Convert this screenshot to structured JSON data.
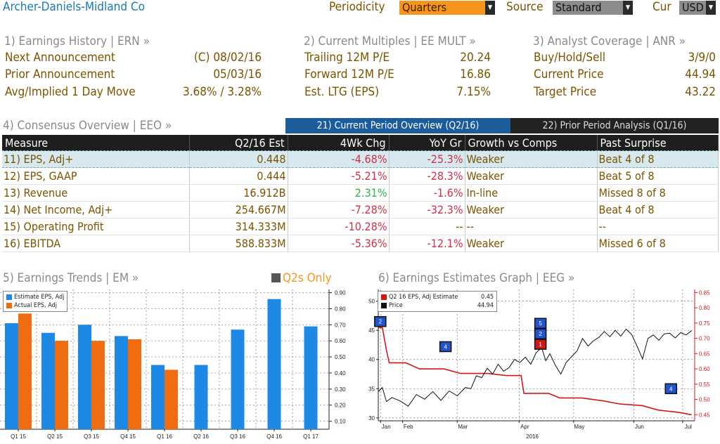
{
  "header": {
    "company": "Archer-Daniels-Midland Co",
    "periodicity_label": "Periodicity",
    "periodicity_value": "Quarters",
    "source_label": "Source",
    "source_value": "Standard",
    "currency_label": "Cur",
    "currency_value": "USD"
  },
  "earnings_history": {
    "title": "1) Earnings History | ERN »",
    "rows": [
      {
        "label": "Next Announcement",
        "value": "(C)  08/02/16"
      },
      {
        "label": "Prior Announcement",
        "value": "05/03/16"
      },
      {
        "label": "Avg/Implied 1 Day Move",
        "value": "3.68% / 3.28%"
      }
    ]
  },
  "current_multiples": {
    "title": "2) Current Multiples | EE MULT »",
    "rows": [
      {
        "label": "Trailing 12M P/E",
        "value": "20.24"
      },
      {
        "label": "Forward 12M P/E",
        "value": "16.86"
      },
      {
        "label": "Est. LTG (EPS)",
        "value": "7.15%"
      }
    ]
  },
  "analyst_coverage": {
    "title": "3) Analyst Coverage | ANR »",
    "rows": [
      {
        "label": "Buy/Hold/Sell",
        "value": "3/9/0"
      },
      {
        "label": "Current Price",
        "value": "44.94"
      },
      {
        "label": "Target Price",
        "value": "43.22"
      }
    ]
  },
  "consensus": {
    "title": "4) Consensus Overview | EEO »",
    "tab_current": "21) Current Period Overview (Q2/16)",
    "tab_prior": "22) Prior Period Analysis (Q1/16)",
    "columns": [
      "Measure",
      "Q2/16 Est",
      "4Wk Chg",
      "YoY Gr",
      "Growth vs Comps",
      "Past Surprise"
    ],
    "rows": [
      {
        "measure": "11) EPS, Adj+",
        "est": "0.448",
        "chg": "-4.68%",
        "yoy": "-25.3%",
        "comps": "Weaker",
        "surprise": "Beat 4 of 8"
      },
      {
        "measure": "12) EPS, GAAP",
        "est": "0.444",
        "chg": "-5.21%",
        "yoy": "-28.3%",
        "comps": "Weaker",
        "surprise": "Beat 5 of 8"
      },
      {
        "measure": "13) Revenue",
        "est": "16.912B",
        "chg": "2.31%",
        "yoy": "-1.6%",
        "comps": "In-line",
        "surprise": "Missed 8 of 8"
      },
      {
        "measure": "14) Net Income, Adj+",
        "est": "254.667M",
        "chg": "-7.28%",
        "yoy": "-32.3%",
        "comps": "Weaker",
        "surprise": "Beat 4 of 8"
      },
      {
        "measure": "15) Operating Profit",
        "est": "314.333M",
        "chg": "-10.28%",
        "yoy": "--",
        "comps": "--",
        "surprise": "--"
      },
      {
        "measure": "16) EBITDA",
        "est": "588.833M",
        "chg": "-5.36%",
        "yoy": "-12.1%",
        "comps": "Weaker",
        "surprise": "Missed 6 of 8"
      }
    ]
  },
  "trends": {
    "title": "5) Earnings Trends | EM »",
    "toggle_label": "Q2s Only"
  },
  "graph": {
    "title": "6) Earnings Estimates Graph | EEG »",
    "legend_estimate": "Q2 16 EPS, Adj Estimate",
    "legend_estimate_value": "0.45",
    "legend_price": "Price",
    "legend_price_value": "44.94",
    "year_label": "2016"
  },
  "colors": {
    "blue": "#1e88e5",
    "orange": "#ef6c10",
    "red": "#d01818",
    "price": "#111111"
  },
  "chart_data": [
    {
      "type": "bar",
      "categories": [
        "Q1 15",
        "Q2 15",
        "Q3 15",
        "Q4 15",
        "Q1 16",
        "Q2 16",
        "Q3 16",
        "Q4 16",
        "Q1 17"
      ],
      "series": [
        {
          "name": "Estimate EPS, Adj",
          "values": [
            0.71,
            0.65,
            0.7,
            0.63,
            0.45,
            0.45,
            0.67,
            0.86,
            0.69
          ]
        },
        {
          "name": "Actual EPS, Adj",
          "values": [
            0.77,
            0.6,
            0.6,
            0.61,
            0.42,
            null,
            null,
            null,
            null
          ]
        }
      ],
      "ylim": [
        0.05,
        0.92
      ],
      "yticks": [
        "0.10",
        "0.20",
        "0.30",
        "0.40",
        "0.50",
        "0.60",
        "0.70",
        "0.80",
        "0.90"
      ],
      "legend": "top-left",
      "grid": true
    },
    {
      "type": "line",
      "x_ticks": [
        "Jan",
        "Feb",
        "Mar",
        "Apr",
        "May",
        "Jun",
        "Jul"
      ],
      "x_year": "2016",
      "left_axis": {
        "ticks": [
          30,
          35,
          40,
          45,
          50
        ],
        "ylim": [
          29.5,
          52
        ]
      },
      "right_axis": {
        "ticks": [
          "0.45",
          "0.50",
          "0.55",
          "0.60",
          "0.65",
          "0.70",
          "0.75",
          "0.80",
          "0.85"
        ],
        "ylim": [
          0.43,
          0.86
        ]
      },
      "series": [
        {
          "name": "Q2 16 EPS, Adj Estimate",
          "axis": "right",
          "points": [
            [
              0.0,
              0.735
            ],
            [
              0.15,
              0.735
            ],
            [
              0.3,
              0.66
            ],
            [
              0.4,
              0.62
            ],
            [
              1.0,
              0.62
            ],
            [
              1.5,
              0.6
            ],
            [
              2.4,
              0.6
            ],
            [
              3.0,
              0.585
            ],
            [
              4.0,
              0.585
            ],
            [
              4.65,
              0.578
            ],
            [
              5.2,
              0.578
            ],
            [
              5.3,
              0.52
            ],
            [
              6.2,
              0.52
            ],
            [
              6.6,
              0.505
            ],
            [
              7.4,
              0.505
            ],
            [
              8.2,
              0.495
            ],
            [
              8.8,
              0.485
            ],
            [
              9.6,
              0.48
            ],
            [
              10.2,
              0.465
            ],
            [
              10.9,
              0.458
            ],
            [
              11.4,
              0.45
            ]
          ]
        },
        {
          "name": "Price",
          "axis": "left",
          "points": [
            [
              0.0,
              34.5
            ],
            [
              0.15,
              35.2
            ],
            [
              0.3,
              32.8
            ],
            [
              0.5,
              33.5
            ],
            [
              0.8,
              32.9
            ],
            [
              1.1,
              32.0
            ],
            [
              1.4,
              34.0
            ],
            [
              1.7,
              33.2
            ],
            [
              2.0,
              34.5
            ],
            [
              2.3,
              33.0
            ],
            [
              2.6,
              34.6
            ],
            [
              2.9,
              33.8
            ],
            [
              3.2,
              35.2
            ],
            [
              3.4,
              35.0
            ],
            [
              3.6,
              37.2
            ],
            [
              3.8,
              36.9
            ],
            [
              4.0,
              38.5
            ],
            [
              4.2,
              37.5
            ],
            [
              4.4,
              39.2
            ],
            [
              4.6,
              38.0
            ],
            [
              4.8,
              38.6
            ],
            [
              5.0,
              40.0
            ],
            [
              5.2,
              39.5
            ],
            [
              5.4,
              40.4
            ],
            [
              5.6,
              39.2
            ],
            [
              5.8,
              41.2
            ],
            [
              6.0,
              42.0
            ],
            [
              6.15,
              39.8
            ],
            [
              6.3,
              41.0
            ],
            [
              6.5,
              39.0
            ],
            [
              6.7,
              37.5
            ],
            [
              6.9,
              39.5
            ],
            [
              7.1,
              40.5
            ],
            [
              7.3,
              41.5
            ],
            [
              7.5,
              43.6
            ],
            [
              7.7,
              42.3
            ],
            [
              7.9,
              43.2
            ],
            [
              8.1,
              43.8
            ],
            [
              8.3,
              44.8
            ],
            [
              8.5,
              43.9
            ],
            [
              8.7,
              45.0
            ],
            [
              8.9,
              44.0
            ],
            [
              9.1,
              45.2
            ],
            [
              9.3,
              44.3
            ],
            [
              9.5,
              42.3
            ],
            [
              9.7,
              40.1
            ],
            [
              9.9,
              43.6
            ],
            [
              10.1,
              44.2
            ],
            [
              10.3,
              43.3
            ],
            [
              10.5,
              44.4
            ],
            [
              10.7,
              44.5
            ],
            [
              10.9,
              43.7
            ],
            [
              11.1,
              44.6
            ],
            [
              11.3,
              44.2
            ],
            [
              11.5,
              44.94
            ]
          ]
        }
      ],
      "markers": [
        {
          "label": "2",
          "x": 0.1,
          "y": 46.5,
          "color": "blue"
        },
        {
          "label": "4",
          "x": 3.4,
          "y": 42.2,
          "color": "blue"
        },
        {
          "label": "5",
          "x": 8.2,
          "y": 46.2,
          "color": "blue"
        },
        {
          "label": "2",
          "x": 8.2,
          "y": 44.4,
          "color": "blue"
        },
        {
          "label": "1",
          "x": 8.2,
          "y": 42.6,
          "color": "red"
        },
        {
          "label": "4",
          "x": 14.8,
          "y": 35.0,
          "color": "blue"
        }
      ],
      "legend": "top-left",
      "grid": true
    }
  ]
}
